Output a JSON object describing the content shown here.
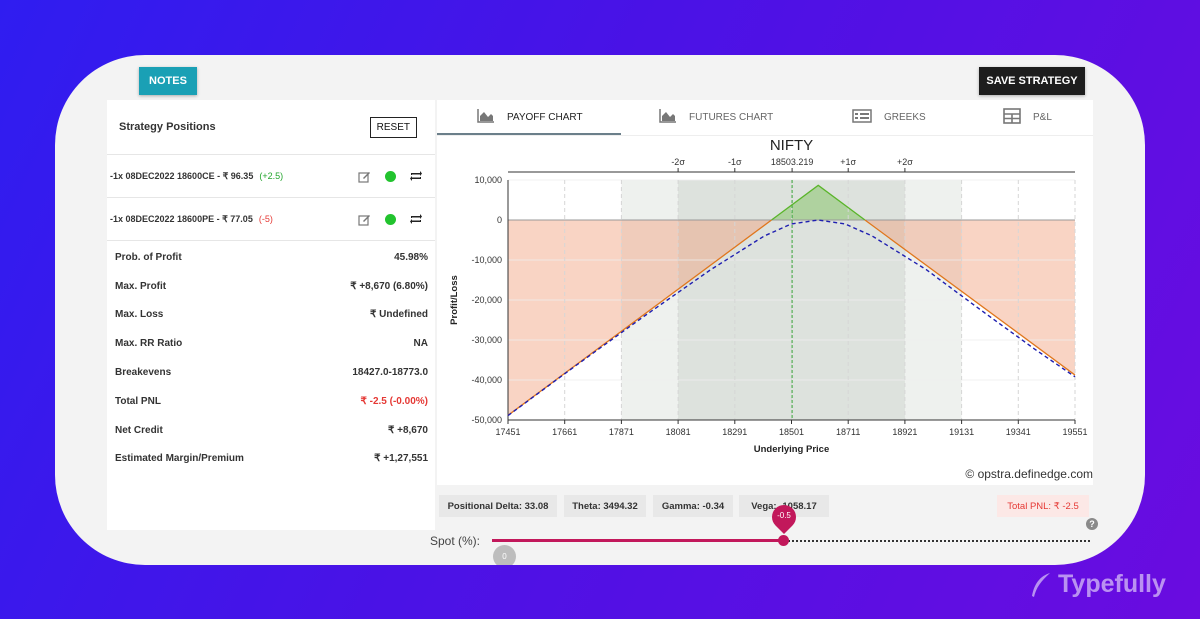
{
  "header": {
    "notes_label": "NOTES",
    "save_label": "SAVE STRATEGY"
  },
  "positions": {
    "title": "Strategy Positions",
    "reset_label": "RESET",
    "items": [
      {
        "text": "-1x  08DEC2022  18600CE  - ₹ 96.35",
        "change": "(+2.5)",
        "change_color": "#22a52c"
      },
      {
        "text": "-1x  08DEC2022  18600PE  - ₹ 77.05",
        "change": "(-5)",
        "change_color": "#e53935"
      }
    ]
  },
  "stats": [
    {
      "label": "Prob. of Profit",
      "value": "45.98%"
    },
    {
      "label": "Max. Profit",
      "value": "₹ +8,670 (6.80%)"
    },
    {
      "label": "Max. Loss",
      "value": "₹ Undefined"
    },
    {
      "label": "Max. RR Ratio",
      "value": "NA"
    },
    {
      "label": "Breakevens",
      "value": "18427.0-18773.0"
    },
    {
      "label": "Total PNL",
      "value": "₹ -2.5 (-0.00%)",
      "color": "#e53935"
    },
    {
      "label": "Net Credit",
      "value": "₹ +8,670"
    },
    {
      "label": "Estimated Margin/Premium",
      "value": "₹ +1,27,551"
    }
  ],
  "tabs": [
    {
      "label": "PAYOFF CHART",
      "icon": "area-chart-icon",
      "active": true
    },
    {
      "label": "FUTURES CHART",
      "icon": "area-chart-icon"
    },
    {
      "label": "GREEKS",
      "icon": "list-icon"
    },
    {
      "label": "P&L",
      "icon": "table-icon"
    }
  ],
  "chart_data": {
    "type": "line",
    "title": "NIFTY",
    "xlabel": "Underlying Price",
    "ylabel": "Profit/Loss",
    "xlim": [
      17451,
      19551
    ],
    "ylim": [
      -50000,
      10000
    ],
    "x_ticks": [
      17451,
      17661,
      17871,
      18081,
      18291,
      18501,
      18711,
      18921,
      19131,
      19341,
      19551
    ],
    "y_ticks": [
      10000,
      0,
      -10000,
      -20000,
      -30000,
      -40000,
      -50000
    ],
    "y_tick_labels": [
      "10,000",
      "0",
      "-10,000",
      "-20,000",
      "-30,000",
      "-40,000",
      "-50,000"
    ],
    "sigma_ticks": [
      {
        "label": "-2σ",
        "x": 18081
      },
      {
        "label": "-1σ",
        "x": 18291
      },
      {
        "label": "18503.219",
        "x": 18503.219
      },
      {
        "label": "+1σ",
        "x": 18711
      },
      {
        "label": "+2σ",
        "x": 18921
      }
    ],
    "bands": {
      "two_sigma": [
        17871,
        19131
      ],
      "one_sigma": [
        18081,
        18921
      ]
    },
    "spot": 18503.219,
    "series": [
      {
        "x": [
          17451,
          18600,
          19551
        ],
        "y": [
          -48830,
          8670,
          -38760
        ],
        "color": "#e0761c",
        "dash": false
      },
      {
        "x": [
          17451,
          17700,
          17950,
          18200,
          18400,
          18500,
          18600,
          18700,
          18800,
          19000,
          19200,
          19400,
          19551
        ],
        "y": [
          -48900,
          -36500,
          -24300,
          -12500,
          -4000,
          -1000,
          0,
          -1000,
          -4000,
          -12400,
          -22400,
          -32200,
          -39200
        ],
        "color": "#1f1fb0",
        "dash": true
      }
    ],
    "colors": {
      "profit": "#5ab52a",
      "loss": "#f2a07c",
      "band": "#d8ded8"
    }
  },
  "watermark": "© opstra.definedge.com",
  "greeks": [
    {
      "label": "Positional Delta: 33.08"
    },
    {
      "label": "Theta: 3494.32"
    },
    {
      "label": "Gamma: -0.34"
    },
    {
      "label": "Vega: -1058.17"
    }
  ],
  "total_pnl": "Total PNL: ₹ -2.5",
  "spot": {
    "label": "Spot (%):",
    "value": "-0.5",
    "min_label": "0",
    "fraction": 0.487
  },
  "brand": "Typefully"
}
